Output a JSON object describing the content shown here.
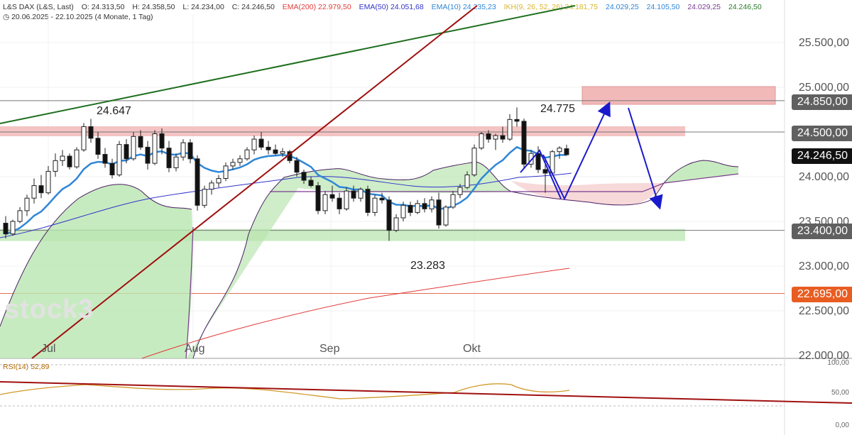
{
  "header": {
    "symbol": "L&S DAX (L&S, Last)",
    "open": "O: 24.313,50",
    "high": "H: 24.358,50",
    "low": "L: 24.234,00",
    "close": "C: 24.246,50",
    "ema200": "EMA(200)  22.979,50",
    "ema50": "EMA(50)  24.051,68",
    "ema10": "EMA(10)  24.235,23",
    "ikh": "IKH(9, 26, 52, 26)  24.181,75",
    "ikh_v2": "24.029,25",
    "ikh_v3": "24.105,50",
    "ikh_v4": "24.029,25",
    "ikh_v5": "24.246,50",
    "range": "20.06.2025 - 22.10.2025",
    "period": "(4 Monate, 1 Tag)"
  },
  "watermark": "stock3",
  "annotations": {
    "high1": "24.647",
    "high2": "24.775",
    "low1": "23.283"
  },
  "price_labels": {
    "l24850": "24.850,00",
    "l24500": "24.500,00",
    "current": "24.246,50",
    "l23400": "23.400,00",
    "l22695": "22.695,00"
  },
  "axis_labels": {
    "a25500": "25.500,00",
    "a25000": "25.000,00",
    "a24000": "24.000,00",
    "a23500": "23.500,00",
    "a23000": "23.000,00",
    "a22500": "22.500,00",
    "a22000": "22.000,00"
  },
  "months": {
    "jul": "Jul",
    "aug": "Aug",
    "sep": "Sep",
    "okt": "Okt"
  },
  "rsi": {
    "label": "RSI(14)  52,89",
    "axis_100": "100,00",
    "axis_50": "50,00",
    "axis_0": "0,00"
  },
  "colors": {
    "resistance_zone": "#f2b9b9",
    "support_zone": "#b9e6b0",
    "ema200": "#e23b3b",
    "ema50": "#3333cc",
    "ema10": "#2f86d6",
    "trend_green": "#1e6e1e",
    "trend_red": "#a01010",
    "arrow": "#1a1acc",
    "label_grey": "#606060",
    "label_black": "#111111",
    "label_orange": "#e85d21"
  },
  "chart_data": {
    "type": "candlestick",
    "xlabel": "",
    "ylabel": "",
    "ylim": [
      22000,
      25800
    ],
    "x_months": [
      "Jul",
      "Aug",
      "Sep",
      "Okt"
    ],
    "candles": [
      [
        23480,
        23560,
        23310,
        23360
      ],
      [
        23360,
        23520,
        23340,
        23500
      ],
      [
        23500,
        23660,
        23480,
        23620
      ],
      [
        23620,
        23800,
        23560,
        23760
      ],
      [
        23760,
        23980,
        23700,
        23900
      ],
      [
        23900,
        24020,
        23760,
        23820
      ],
      [
        23820,
        24120,
        23800,
        24060
      ],
      [
        24060,
        24260,
        24000,
        24180
      ],
      [
        24180,
        24300,
        24120,
        24230
      ],
      [
        24230,
        24260,
        24080,
        24110
      ],
      [
        24110,
        24330,
        24090,
        24300
      ],
      [
        24300,
        24600,
        24280,
        24560
      ],
      [
        24560,
        24647,
        24380,
        24430
      ],
      [
        24430,
        24500,
        24200,
        24250
      ],
      [
        24250,
        24320,
        24100,
        24150
      ],
      [
        24150,
        24200,
        23980,
        24020
      ],
      [
        24020,
        24400,
        24000,
        24360
      ],
      [
        24360,
        24420,
        24150,
        24200
      ],
      [
        24200,
        24500,
        24180,
        24450
      ],
      [
        24450,
        24520,
        24300,
        24330
      ],
      [
        24330,
        24400,
        24080,
        24150
      ],
      [
        24150,
        24520,
        24130,
        24480
      ],
      [
        24480,
        24540,
        24250,
        24320
      ],
      [
        24320,
        24400,
        24050,
        24100
      ],
      [
        24100,
        24260,
        24060,
        24220
      ],
      [
        24220,
        24420,
        24180,
        24380
      ],
      [
        24380,
        24420,
        24150,
        24200
      ],
      [
        24200,
        24240,
        23620,
        23680
      ],
      [
        23680,
        23900,
        23650,
        23860
      ],
      [
        23860,
        23960,
        23800,
        23930
      ],
      [
        23930,
        24020,
        23880,
        23980
      ],
      [
        23980,
        24160,
        23950,
        24120
      ],
      [
        24120,
        24200,
        24080,
        24160
      ],
      [
        24160,
        24240,
        24120,
        24200
      ],
      [
        24200,
        24330,
        24180,
        24300
      ],
      [
        24300,
        24460,
        24250,
        24420
      ],
      [
        24420,
        24500,
        24300,
        24330
      ],
      [
        24330,
        24400,
        24250,
        24300
      ],
      [
        24300,
        24360,
        24240,
        24260
      ],
      [
        24260,
        24320,
        24220,
        24280
      ],
      [
        24280,
        24300,
        24150,
        24180
      ],
      [
        24180,
        24220,
        24000,
        24050
      ],
      [
        24050,
        24080,
        23920,
        23960
      ],
      [
        23960,
        24000,
        23880,
        23900
      ],
      [
        23900,
        23940,
        23580,
        23620
      ],
      [
        23620,
        23840,
        23580,
        23800
      ],
      [
        23800,
        23900,
        23720,
        23760
      ],
      [
        23760,
        23820,
        23580,
        23640
      ],
      [
        23640,
        23880,
        23620,
        23840
      ],
      [
        23840,
        23900,
        23720,
        23760
      ],
      [
        23760,
        23880,
        23720,
        23860
      ],
      [
        23860,
        23900,
        23560,
        23600
      ],
      [
        23600,
        23800,
        23560,
        23760
      ],
      [
        23760,
        23820,
        23700,
        23740
      ],
      [
        23740,
        23780,
        23283,
        23400
      ],
      [
        23400,
        23580,
        23380,
        23540
      ],
      [
        23540,
        23720,
        23500,
        23680
      ],
      [
        23680,
        23720,
        23560,
        23600
      ],
      [
        23600,
        23740,
        23580,
        23700
      ],
      [
        23700,
        23760,
        23600,
        23640
      ],
      [
        23640,
        23780,
        23600,
        23740
      ],
      [
        23740,
        23820,
        23420,
        23460
      ],
      [
        23460,
        23680,
        23440,
        23660
      ],
      [
        23660,
        23840,
        23640,
        23800
      ],
      [
        23800,
        23920,
        23760,
        23880
      ],
      [
        23880,
        24060,
        23860,
        24020
      ],
      [
        24020,
        24360,
        24000,
        24320
      ],
      [
        24320,
        24500,
        24300,
        24480
      ],
      [
        24480,
        24520,
        24380,
        24420
      ],
      [
        24420,
        24480,
        24300,
        24460
      ],
      [
        24460,
        24560,
        24380,
        24420
      ],
      [
        24420,
        24700,
        24400,
        24640
      ],
      [
        24640,
        24775,
        24560,
        24620
      ],
      [
        24620,
        24650,
        24100,
        24140
      ],
      [
        24140,
        24300,
        24100,
        24260
      ],
      [
        24260,
        24340,
        24040,
        24080
      ],
      [
        24080,
        24180,
        23820,
        24040
      ],
      [
        24040,
        24300,
        24020,
        24280
      ],
      [
        24280,
        24340,
        24200,
        24320
      ],
      [
        24313,
        24358,
        24234,
        24246
      ]
    ]
  }
}
